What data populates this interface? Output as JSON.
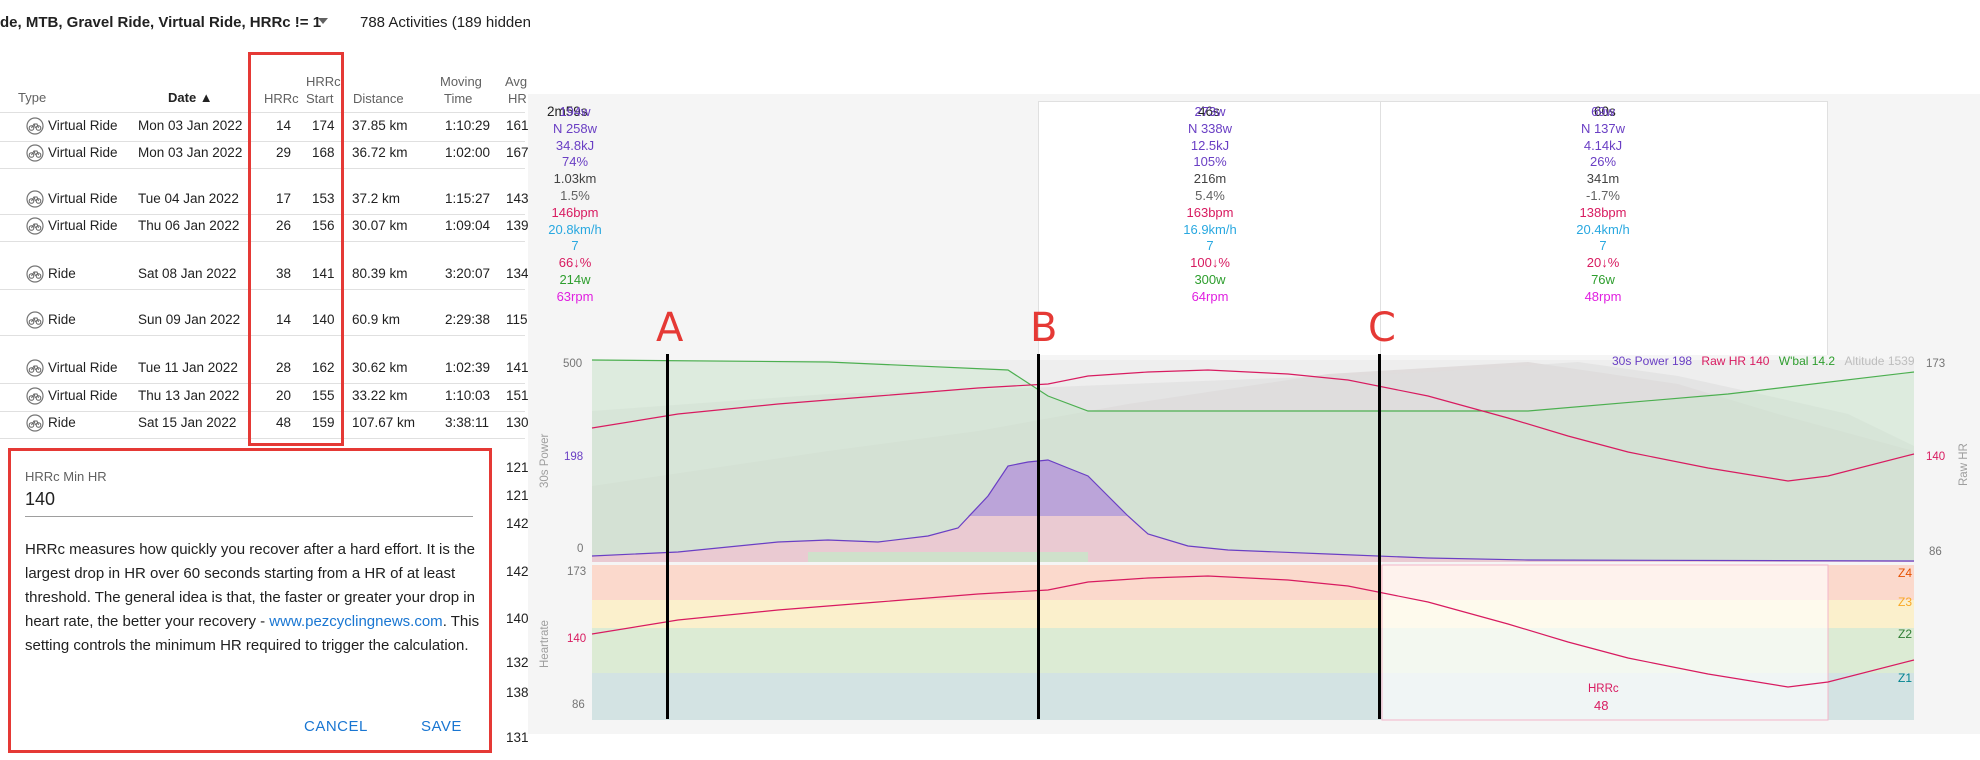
{
  "filter": {
    "text": "de, MTB, Gravel Ride, Virtual Ride, HRRc != 1",
    "dropdown_icon": "caret-down-icon",
    "count": "788 Activities (189 hidden"
  },
  "table": {
    "headers": {
      "type": "Type",
      "date": "Date ▲",
      "hrrc": "HRRc",
      "hrrc_start_1": "HRRc",
      "hrrc_start_2": "Start",
      "distance": "Distance",
      "moving_1": "Moving",
      "moving_2": "Time",
      "avg_1": "Avg",
      "avg_2": "HR"
    },
    "rows": [
      {
        "type": "Virtual Ride",
        "date": "Mon 03 Jan 2022",
        "hrrc": "14",
        "start": "174",
        "distance": "37.85 km",
        "time": "1:10:29",
        "avg": "161"
      },
      {
        "type": "Virtual Ride",
        "date": "Mon 03 Jan 2022",
        "hrrc": "29",
        "start": "168",
        "distance": "36.72 km",
        "time": "1:02:00",
        "avg": "167"
      },
      {
        "type": "Virtual Ride",
        "date": "Tue 04 Jan 2022",
        "hrrc": "17",
        "start": "153",
        "distance": "37.2 km",
        "time": "1:15:27",
        "avg": "143"
      },
      {
        "type": "Virtual Ride",
        "date": "Thu 06 Jan 2022",
        "hrrc": "26",
        "start": "156",
        "distance": "30.07 km",
        "time": "1:09:04",
        "avg": "139"
      },
      {
        "type": "Ride",
        "date": "Sat 08 Jan 2022",
        "hrrc": "38",
        "start": "141",
        "distance": "80.39 km",
        "time": "3:20:07",
        "avg": "134"
      },
      {
        "type": "Ride",
        "date": "Sun 09 Jan 2022",
        "hrrc": "14",
        "start": "140",
        "distance": "60.9 km",
        "time": "2:29:38",
        "avg": "115"
      },
      {
        "type": "Virtual Ride",
        "date": "Tue 11 Jan 2022",
        "hrrc": "28",
        "start": "162",
        "distance": "30.62 km",
        "time": "1:02:39",
        "avg": "141"
      },
      {
        "type": "Virtual Ride",
        "date": "Thu 13 Jan 2022",
        "hrrc": "20",
        "start": "155",
        "distance": "33.22 km",
        "time": "1:10:03",
        "avg": "151"
      },
      {
        "type": "Ride",
        "date": "Sat 15 Jan 2022",
        "hrrc": "48",
        "start": "159",
        "distance": "107.67 km",
        "time": "3:38:11",
        "avg": "130"
      }
    ],
    "partial_avg": [
      "121",
      "121",
      "142",
      "142",
      "140",
      "132",
      "138",
      "131"
    ]
  },
  "dialog": {
    "label": "HRRc Min HR",
    "value": "140",
    "desc_before": "HRRc measures how quickly you recover after a hard effort. It is the largest drop in HR over 60 seconds starting from a HR of at least threshold. The general idea is that, the faster or greater your drop in heart rate, the better your recovery - ",
    "link": "www.pezcyclingnews.com",
    "desc_after": ". This setting controls the minimum HR required to trigger the calculation.",
    "cancel": "CANCEL",
    "save": "SAVE"
  },
  "intervals": [
    {
      "title": "2m59s",
      "stats": [
        "194w",
        "N 258w",
        "34.8kJ",
        "74%",
        "1.03km",
        "1.5%",
        "146bpm",
        "20.8km/h",
        "7",
        "66↓%",
        "214w",
        "63rpm"
      ]
    },
    {
      "title": "46s",
      "stats": [
        "273w",
        "N 338w",
        "12.5kJ",
        "105%",
        "216m",
        "5.4%",
        "163bpm",
        "16.9km/h",
        "7",
        "100↓%",
        "300w",
        "64rpm"
      ]
    },
    {
      "title": "60s",
      "stats": [
        "69w",
        "N 137w",
        "4.14kJ",
        "26%",
        "341m",
        "-1.7%",
        "138bpm",
        "20.4km/h",
        "7",
        "20↓%",
        "76w",
        "48rpm"
      ]
    }
  ],
  "stat_colors": [
    "#6a3fc4",
    "#6a3fc4",
    "#6a3fc4",
    "#6a3fc4",
    "#424242",
    "#616161",
    "#d81b60",
    "#29a8e0",
    "#29a8e0",
    "#d81b60",
    "#2e9e2e",
    "#e020e0"
  ],
  "markers": [
    "A",
    "B",
    "C"
  ],
  "power_chart": {
    "legend": {
      "power": "30s Power 198",
      "hr": "Raw HR 140",
      "wbal": "W'bal 14.2",
      "alt": "Altitude 1539"
    },
    "left_ticks": {
      "top": "500",
      "mid": "198",
      "bottom": "0"
    },
    "right_ticks": {
      "top": "173",
      "mid": "140",
      "bottom": "86"
    },
    "left_title": "30s Power",
    "right_title": "Raw HR"
  },
  "hr_chart": {
    "ticks": {
      "top": "173",
      "mid": "140",
      "bottom": "86"
    },
    "title": "Heartrate",
    "zones": [
      "Z4",
      "Z3",
      "Z2",
      "Z1"
    ],
    "hrrc_label": "HRRc",
    "hrrc_value": "48"
  }
}
